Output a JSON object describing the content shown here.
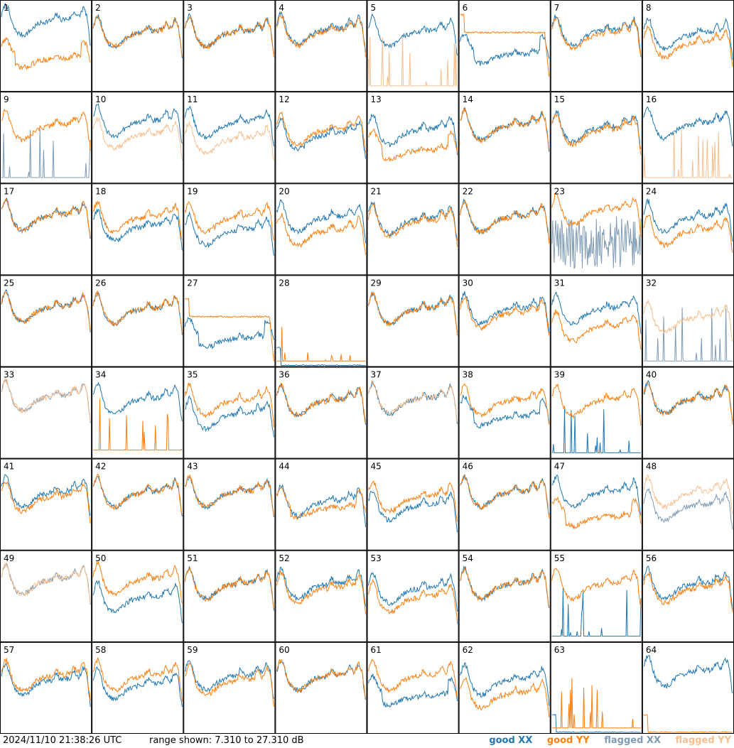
{
  "footer": {
    "timestamp": "2024/11/10 21:38:26 UTC",
    "range_note": "range shown: 7.310 to 27.310 dB"
  },
  "colors": {
    "good_xx": "#1f77b4",
    "good_yy": "#ff7f0e",
    "flagged_xx": "#7f9bb5",
    "flagged_yy": "#f7bf8e",
    "grid": "#000000"
  },
  "chart_data": {
    "type": "line",
    "title": "",
    "xlabel": "",
    "ylabel": "",
    "ylim": [
      7.31,
      27.31
    ],
    "grid_cols": 8,
    "grid_rows": 8,
    "legend": {
      "placement": "bottom-right",
      "entries": [
        {
          "key": "good_xx",
          "label": "good XX"
        },
        {
          "key": "good_yy",
          "label": "good YY"
        },
        {
          "key": "flagged_xx",
          "label": "flagged XX"
        },
        {
          "key": "flagged_yy",
          "label": "flagged YY"
        }
      ]
    },
    "panels": [
      {
        "label": "1",
        "xx": {
          "status": "good",
          "shape": "normal",
          "level": 0.75
        },
        "yy": {
          "status": "good",
          "shape": "droop",
          "level": 0.45
        }
      },
      {
        "label": "2",
        "xx": {
          "status": "good",
          "shape": "normal",
          "level": 0.62
        },
        "yy": {
          "status": "good",
          "shape": "normal",
          "level": 0.62
        }
      },
      {
        "label": "3",
        "xx": {
          "status": "good",
          "shape": "normal",
          "level": 0.62
        },
        "yy": {
          "status": "good",
          "shape": "normal",
          "level": 0.62
        }
      },
      {
        "label": "4",
        "xx": {
          "status": "good",
          "shape": "normal",
          "level": 0.65
        },
        "yy": {
          "status": "good",
          "shape": "normal",
          "level": 0.63
        }
      },
      {
        "label": "5",
        "xx": {
          "status": "good",
          "shape": "normal",
          "level": 0.62
        },
        "yy": {
          "status": "flagged",
          "shape": "spikes",
          "level": 0.05
        }
      },
      {
        "label": "6",
        "xx": {
          "status": "good",
          "shape": "droop",
          "level": 0.5
        },
        "yy": {
          "status": "good",
          "shape": "flat",
          "level": 0.65
        }
      },
      {
        "label": "7",
        "xx": {
          "status": "good",
          "shape": "normal",
          "level": 0.63
        },
        "yy": {
          "status": "good",
          "shape": "normal",
          "level": 0.6
        }
      },
      {
        "label": "8",
        "xx": {
          "status": "good",
          "shape": "normal",
          "level": 0.6
        },
        "yy": {
          "status": "good",
          "shape": "normal",
          "level": 0.5
        }
      },
      {
        "label": "9",
        "xx": {
          "status": "flagged",
          "shape": "spikes",
          "level": 0.05
        },
        "yy": {
          "status": "good",
          "shape": "normal",
          "level": 0.6
        }
      },
      {
        "label": "10",
        "xx": {
          "status": "good",
          "shape": "normal",
          "level": 0.65
        },
        "yy": {
          "status": "flagged",
          "shape": "normal",
          "level": 0.5
        }
      },
      {
        "label": "11",
        "xx": {
          "status": "good",
          "shape": "normal",
          "level": 0.63
        },
        "yy": {
          "status": "flagged",
          "shape": "normal",
          "level": 0.45
        }
      },
      {
        "label": "12",
        "xx": {
          "status": "good",
          "shape": "normal",
          "level": 0.5
        },
        "yy": {
          "status": "good",
          "shape": "normal",
          "level": 0.55
        }
      },
      {
        "label": "13",
        "xx": {
          "status": "good",
          "shape": "normal",
          "level": 0.55
        },
        "yy": {
          "status": "good",
          "shape": "droop",
          "level": 0.45
        }
      },
      {
        "label": "14",
        "xx": {
          "status": "good",
          "shape": "normal",
          "level": 0.6
        },
        "yy": {
          "status": "good",
          "shape": "normal",
          "level": 0.6
        }
      },
      {
        "label": "15",
        "xx": {
          "status": "good",
          "shape": "normal",
          "level": 0.58
        },
        "yy": {
          "status": "good",
          "shape": "normal",
          "level": 0.55
        }
      },
      {
        "label": "16",
        "xx": {
          "status": "good",
          "shape": "normal",
          "level": 0.62
        },
        "yy": {
          "status": "flagged",
          "shape": "spikes",
          "level": 0.05
        }
      },
      {
        "label": "17",
        "xx": {
          "status": "good",
          "shape": "normal",
          "level": 0.62
        },
        "yy": {
          "status": "good",
          "shape": "normal",
          "level": 0.62
        }
      },
      {
        "label": "18",
        "xx": {
          "status": "good",
          "shape": "normal",
          "level": 0.5
        },
        "yy": {
          "status": "good",
          "shape": "normal",
          "level": 0.6
        }
      },
      {
        "label": "19",
        "xx": {
          "status": "good",
          "shape": "normal",
          "level": 0.45
        },
        "yy": {
          "status": "good",
          "shape": "normal",
          "level": 0.6
        }
      },
      {
        "label": "20",
        "xx": {
          "status": "good",
          "shape": "normal",
          "level": 0.6
        },
        "yy": {
          "status": "good",
          "shape": "normal",
          "level": 0.45
        }
      },
      {
        "label": "21",
        "xx": {
          "status": "good",
          "shape": "normal",
          "level": 0.58
        },
        "yy": {
          "status": "good",
          "shape": "normal",
          "level": 0.55
        }
      },
      {
        "label": "22",
        "xx": {
          "status": "good",
          "shape": "normal",
          "level": 0.6
        },
        "yy": {
          "status": "good",
          "shape": "normal",
          "level": 0.6
        }
      },
      {
        "label": "23",
        "xx": {
          "status": "flagged",
          "shape": "noisy",
          "level": 0.35
        },
        "yy": {
          "status": "good",
          "shape": "normal",
          "level": 0.68
        }
      },
      {
        "label": "24",
        "xx": {
          "status": "good",
          "shape": "normal",
          "level": 0.6
        },
        "yy": {
          "status": "good",
          "shape": "normal",
          "level": 0.45
        }
      },
      {
        "label": "25",
        "xx": {
          "status": "good",
          "shape": "normal",
          "level": 0.62
        },
        "yy": {
          "status": "good",
          "shape": "normal",
          "level": 0.62
        }
      },
      {
        "label": "26",
        "xx": {
          "status": "good",
          "shape": "normal",
          "level": 0.6
        },
        "yy": {
          "status": "good",
          "shape": "normal",
          "level": 0.6
        }
      },
      {
        "label": "27",
        "xx": {
          "status": "good",
          "shape": "droop",
          "level": 0.4
        },
        "yy": {
          "status": "good",
          "shape": "flat",
          "level": 0.55
        }
      },
      {
        "label": "28",
        "xx": {
          "status": "good",
          "shape": "flat",
          "level": 0.0
        },
        "yy": {
          "status": "good",
          "shape": "spikes",
          "level": 0.05
        }
      },
      {
        "label": "29",
        "xx": {
          "status": "good",
          "shape": "normal",
          "level": 0.6
        },
        "yy": {
          "status": "good",
          "shape": "normal",
          "level": 0.6
        }
      },
      {
        "label": "30",
        "xx": {
          "status": "good",
          "shape": "normal",
          "level": 0.6
        },
        "yy": {
          "status": "good",
          "shape": "normal",
          "level": 0.55
        }
      },
      {
        "label": "31",
        "xx": {
          "status": "good",
          "shape": "normal",
          "level": 0.6
        },
        "yy": {
          "status": "good",
          "shape": "normal",
          "level": 0.4
        }
      },
      {
        "label": "32",
        "xx": {
          "status": "flagged",
          "shape": "spikes",
          "level": 0.05
        },
        "yy": {
          "status": "flagged",
          "shape": "normal",
          "level": 0.5
        }
      },
      {
        "label": "33",
        "xx": {
          "status": "flagged",
          "shape": "normal",
          "level": 0.65
        },
        "yy": {
          "status": "flagged",
          "shape": "normal",
          "level": 0.65
        }
      },
      {
        "label": "34",
        "xx": {
          "status": "good",
          "shape": "normal",
          "level": 0.62
        },
        "yy": {
          "status": "good",
          "shape": "spikes",
          "level": 0.08
        }
      },
      {
        "label": "35",
        "xx": {
          "status": "good",
          "shape": "normal",
          "level": 0.45
        },
        "yy": {
          "status": "good",
          "shape": "normal",
          "level": 0.6
        }
      },
      {
        "label": "36",
        "xx": {
          "status": "good",
          "shape": "normal",
          "level": 0.6
        },
        "yy": {
          "status": "good",
          "shape": "normal",
          "level": 0.6
        }
      },
      {
        "label": "37",
        "xx": {
          "status": "good",
          "shape": "normal",
          "level": 0.62
        },
        "yy": {
          "status": "flagged",
          "shape": "normal",
          "level": 0.62
        }
      },
      {
        "label": "38",
        "xx": {
          "status": "good",
          "shape": "droop",
          "level": 0.55
        },
        "yy": {
          "status": "good",
          "shape": "normal",
          "level": 0.6
        }
      },
      {
        "label": "39",
        "xx": {
          "status": "good",
          "shape": "spikes",
          "level": 0.05
        },
        "yy": {
          "status": "good",
          "shape": "normal",
          "level": 0.6
        }
      },
      {
        "label": "40",
        "xx": {
          "status": "good",
          "shape": "normal",
          "level": 0.62
        },
        "yy": {
          "status": "good",
          "shape": "normal",
          "level": 0.62
        }
      },
      {
        "label": "41",
        "xx": {
          "status": "good",
          "shape": "normal",
          "level": 0.6
        },
        "yy": {
          "status": "good",
          "shape": "normal",
          "level": 0.55
        }
      },
      {
        "label": "42",
        "xx": {
          "status": "good",
          "shape": "normal",
          "level": 0.6
        },
        "yy": {
          "status": "good",
          "shape": "normal",
          "level": 0.6
        }
      },
      {
        "label": "43",
        "xx": {
          "status": "good",
          "shape": "normal",
          "level": 0.6
        },
        "yy": {
          "status": "good",
          "shape": "normal",
          "level": 0.6
        }
      },
      {
        "label": "44",
        "xx": {
          "status": "good",
          "shape": "normal",
          "level": 0.5
        },
        "yy": {
          "status": "good",
          "shape": "droop",
          "level": 0.55
        }
      },
      {
        "label": "45",
        "xx": {
          "status": "good",
          "shape": "normal",
          "level": 0.45
        },
        "yy": {
          "status": "good",
          "shape": "normal",
          "level": 0.55
        }
      },
      {
        "label": "46",
        "xx": {
          "status": "good",
          "shape": "normal",
          "level": 0.6
        },
        "yy": {
          "status": "good",
          "shape": "normal",
          "level": 0.6
        }
      },
      {
        "label": "47",
        "xx": {
          "status": "good",
          "shape": "normal",
          "level": 0.6
        },
        "yy": {
          "status": "good",
          "shape": "droop",
          "level": 0.45
        }
      },
      {
        "label": "48",
        "xx": {
          "status": "flagged",
          "shape": "normal",
          "level": 0.45
        },
        "yy": {
          "status": "flagged",
          "shape": "normal",
          "level": 0.6
        }
      },
      {
        "label": "49",
        "xx": {
          "status": "flagged",
          "shape": "normal",
          "level": 0.65
        },
        "yy": {
          "status": "flagged",
          "shape": "normal",
          "level": 0.65
        }
      },
      {
        "label": "50",
        "xx": {
          "status": "good",
          "shape": "normal",
          "level": 0.45
        },
        "yy": {
          "status": "good",
          "shape": "normal",
          "level": 0.65
        }
      },
      {
        "label": "51",
        "xx": {
          "status": "good",
          "shape": "normal",
          "level": 0.6
        },
        "yy": {
          "status": "good",
          "shape": "normal",
          "level": 0.6
        }
      },
      {
        "label": "52",
        "xx": {
          "status": "good",
          "shape": "normal",
          "level": 0.6
        },
        "yy": {
          "status": "good",
          "shape": "normal",
          "level": 0.55
        }
      },
      {
        "label": "53",
        "xx": {
          "status": "good",
          "shape": "normal",
          "level": 0.55
        },
        "yy": {
          "status": "good",
          "shape": "normal",
          "level": 0.45
        }
      },
      {
        "label": "54",
        "xx": {
          "status": "good",
          "shape": "normal",
          "level": 0.6
        },
        "yy": {
          "status": "good",
          "shape": "normal",
          "level": 0.6
        }
      },
      {
        "label": "55",
        "xx": {
          "status": "good",
          "shape": "spikes",
          "level": 0.05
        },
        "yy": {
          "status": "good",
          "shape": "normal",
          "level": 0.6
        }
      },
      {
        "label": "56",
        "xx": {
          "status": "good",
          "shape": "normal",
          "level": 0.6
        },
        "yy": {
          "status": "good",
          "shape": "normal",
          "level": 0.55
        }
      },
      {
        "label": "57",
        "xx": {
          "status": "good",
          "shape": "normal",
          "level": 0.55
        },
        "yy": {
          "status": "good",
          "shape": "normal",
          "level": 0.6
        }
      },
      {
        "label": "58",
        "xx": {
          "status": "good",
          "shape": "normal",
          "level": 0.5
        },
        "yy": {
          "status": "good",
          "shape": "normal",
          "level": 0.6
        }
      },
      {
        "label": "59",
        "xx": {
          "status": "good",
          "shape": "normal",
          "level": 0.6
        },
        "yy": {
          "status": "good",
          "shape": "normal",
          "level": 0.55
        }
      },
      {
        "label": "60",
        "xx": {
          "status": "good",
          "shape": "normal",
          "level": 0.6
        },
        "yy": {
          "status": "good",
          "shape": "normal",
          "level": 0.6
        }
      },
      {
        "label": "61",
        "xx": {
          "status": "good",
          "shape": "droop",
          "level": 0.5
        },
        "yy": {
          "status": "good",
          "shape": "normal",
          "level": 0.6
        }
      },
      {
        "label": "62",
        "xx": {
          "status": "good",
          "shape": "normal",
          "level": 0.55
        },
        "yy": {
          "status": "good",
          "shape": "normal",
          "level": 0.4
        }
      },
      {
        "label": "63",
        "xx": {
          "status": "good",
          "shape": "flat",
          "level": 0.0
        },
        "yy": {
          "status": "good",
          "shape": "spikes",
          "level": 0.05
        }
      },
      {
        "label": "64",
        "xx": {
          "status": "good",
          "shape": "normal",
          "level": 0.65
        },
        "yy": {
          "status": "good",
          "shape": "flat",
          "level": 0.0
        }
      }
    ]
  }
}
